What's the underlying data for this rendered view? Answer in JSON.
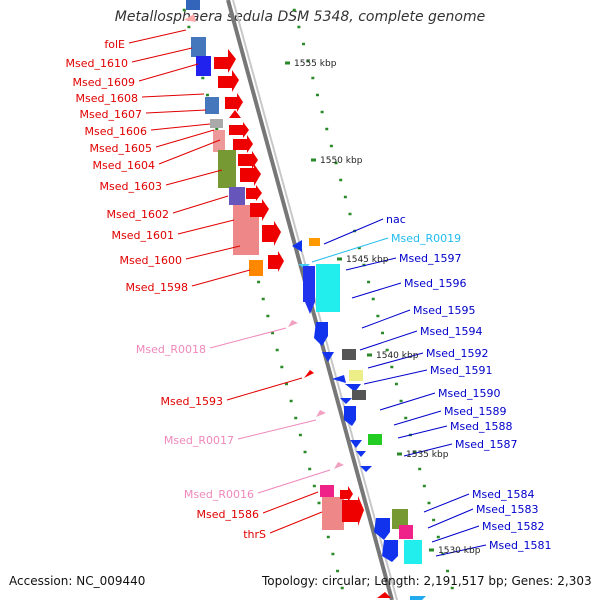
{
  "title": "Metallosphaera sedula DSM 5348, complete genome",
  "footer": {
    "accession": "Accession: NC_009440",
    "summary": "Topology: circular; Length: 2,191,517 bp; Genes: 2,303"
  },
  "colors": {
    "forward_label": "#e00000",
    "reverse_label": "#0000cc",
    "rna_label_pink": "#ee88bb",
    "rna_label_cyan": "#22bbee",
    "backbone": "#888888",
    "tick": "#2a8a2a"
  },
  "scale_ticks": [
    "1555 kbp",
    "1550 kbp",
    "1545 kbp",
    "1540 kbp",
    "1535 kbp",
    "1530 kbp"
  ],
  "left_labels": [
    {
      "text": "folE",
      "kind": "forward"
    },
    {
      "text": "Msed_1610",
      "kind": "forward"
    },
    {
      "text": "Msed_1609",
      "kind": "forward"
    },
    {
      "text": "Msed_1608",
      "kind": "forward"
    },
    {
      "text": "Msed_1607",
      "kind": "forward"
    },
    {
      "text": "Msed_1606",
      "kind": "forward"
    },
    {
      "text": "Msed_1605",
      "kind": "forward"
    },
    {
      "text": "Msed_1604",
      "kind": "forward"
    },
    {
      "text": "Msed_1603",
      "kind": "forward"
    },
    {
      "text": "Msed_1602",
      "kind": "forward"
    },
    {
      "text": "Msed_1601",
      "kind": "forward"
    },
    {
      "text": "Msed_1600",
      "kind": "forward"
    },
    {
      "text": "Msed_1598",
      "kind": "forward"
    },
    {
      "text": "Msed_R0018",
      "kind": "rna"
    },
    {
      "text": "Msed_1593",
      "kind": "forward"
    },
    {
      "text": "Msed_R0017",
      "kind": "rna"
    },
    {
      "text": "Msed_R0016",
      "kind": "rna"
    },
    {
      "text": "Msed_1586",
      "kind": "forward"
    },
    {
      "text": "thrS",
      "kind": "forward"
    }
  ],
  "right_labels": [
    {
      "text": "nac",
      "kind": "reverse"
    },
    {
      "text": "Msed_R0019",
      "kind": "rna_cyan"
    },
    {
      "text": "Msed_1597",
      "kind": "reverse"
    },
    {
      "text": "Msed_1596",
      "kind": "reverse"
    },
    {
      "text": "Msed_1595",
      "kind": "reverse"
    },
    {
      "text": "Msed_1594",
      "kind": "reverse"
    },
    {
      "text": "Msed_1592",
      "kind": "reverse"
    },
    {
      "text": "Msed_1591",
      "kind": "reverse"
    },
    {
      "text": "Msed_1590",
      "kind": "reverse"
    },
    {
      "text": "Msed_1589",
      "kind": "reverse"
    },
    {
      "text": "Msed_1588",
      "kind": "reverse"
    },
    {
      "text": "Msed_1587",
      "kind": "reverse"
    },
    {
      "text": "Msed_1584",
      "kind": "reverse"
    },
    {
      "text": "Msed_1583",
      "kind": "reverse"
    },
    {
      "text": "Msed_1582",
      "kind": "reverse"
    },
    {
      "text": "Msed_1581",
      "kind": "reverse"
    }
  ]
}
